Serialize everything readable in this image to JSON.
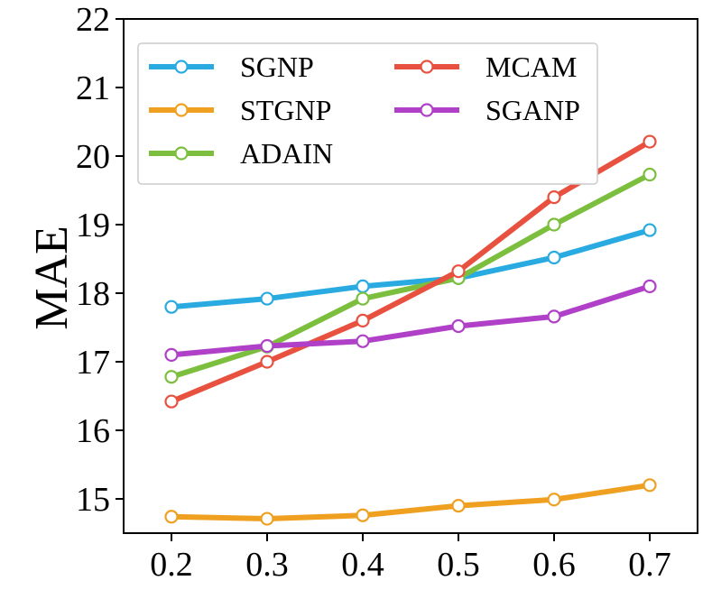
{
  "chart_data": {
    "type": "line",
    "title": "",
    "xlabel": "",
    "ylabel": "MAE",
    "x": [
      0.2,
      0.3,
      0.4,
      0.5,
      0.6,
      0.7
    ],
    "x_tick_labels": [
      "0.2",
      "0.3",
      "0.4",
      "0.5",
      "0.6",
      "0.7"
    ],
    "ylim": [
      14.5,
      22
    ],
    "y_ticks": [
      15,
      16,
      17,
      18,
      19,
      20,
      21,
      22
    ],
    "y_tick_labels": [
      "15",
      "16",
      "17",
      "18",
      "19",
      "20",
      "21",
      "22"
    ],
    "grid": false,
    "legend_position": "top-left",
    "series": [
      {
        "name": "SGNP",
        "color": "#29abe2",
        "values": [
          17.8,
          17.92,
          18.1,
          18.22,
          18.52,
          18.92
        ]
      },
      {
        "name": "STGNP",
        "color": "#f0a020",
        "values": [
          14.74,
          14.71,
          14.76,
          14.9,
          14.99,
          15.2
        ]
      },
      {
        "name": "ADAIN",
        "color": "#7cbf3f",
        "values": [
          16.78,
          17.22,
          17.92,
          18.22,
          19.0,
          19.73
        ]
      },
      {
        "name": "MCAM",
        "color": "#e8513f",
        "values": [
          16.42,
          17.0,
          17.6,
          18.32,
          19.4,
          20.21
        ]
      },
      {
        "name": "SGANP",
        "color": "#b040c8",
        "values": [
          17.1,
          17.23,
          17.3,
          17.52,
          17.66,
          18.1
        ]
      }
    ]
  }
}
